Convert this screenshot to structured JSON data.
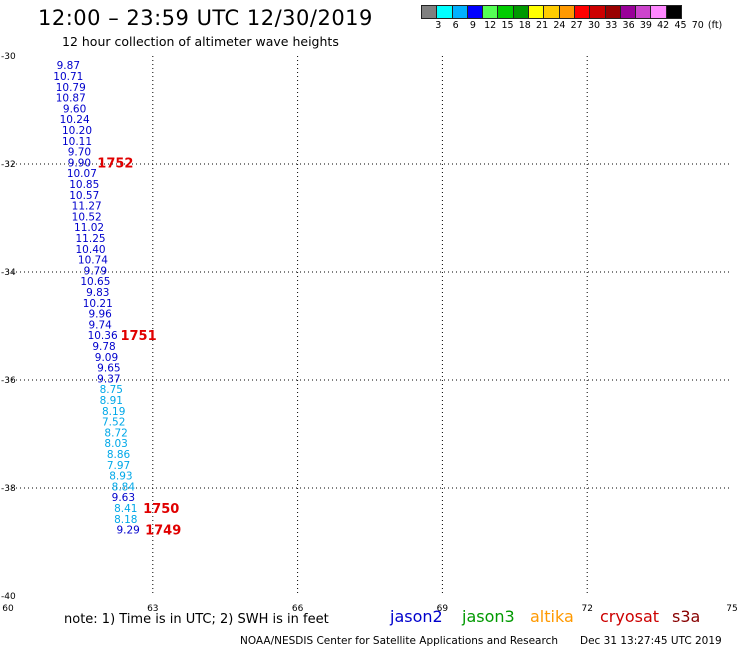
{
  "header": {
    "title": "12:00 – 23:59 UTC 12/30/2019",
    "subtitle": "12 hour collection of altimeter wave heights"
  },
  "legend": {
    "colors": [
      "#808080",
      "#00ffff",
      "#00b0ff",
      "#0000ff",
      "#55ff55",
      "#00cc00",
      "#009900",
      "#ffff00",
      "#ffcc00",
      "#ff9900",
      "#ff0000",
      "#cc0000",
      "#990000",
      "#990099",
      "#cc44cc",
      "#ff88ff",
      "#000000"
    ],
    "labels": [
      "3",
      "6",
      "9",
      "12",
      "15",
      "18",
      "21",
      "24",
      "27",
      "30",
      "33",
      "36",
      "39",
      "42",
      "45",
      "70",
      "(ft)"
    ]
  },
  "map": {
    "lat_labels": [
      "-30",
      "-32",
      "-34",
      "-36",
      "-38",
      "-40"
    ],
    "lon_labels": [
      "60",
      "63",
      "66",
      "69",
      "72",
      "75"
    ],
    "lat_range": [
      -40,
      -30
    ],
    "lon_range": [
      60,
      75
    ]
  },
  "swh_colors": {
    "jason2": "#0000cc",
    "jason3_light": "#00a8e8"
  },
  "observations": [
    {
      "lat": -30.17,
      "lon": 61.25,
      "value": "9.87",
      "color": "jason2"
    },
    {
      "lat": -30.37,
      "lon": 61.25,
      "value": "10.71",
      "color": "jason2"
    },
    {
      "lat": -30.57,
      "lon": 61.3,
      "value": "10.79",
      "color": "jason2"
    },
    {
      "lat": -30.77,
      "lon": 61.3,
      "value": "10.87",
      "color": "jason2"
    },
    {
      "lat": -30.97,
      "lon": 61.38,
      "value": "9.60",
      "color": "jason2"
    },
    {
      "lat": -31.17,
      "lon": 61.38,
      "value": "10.24",
      "color": "jason2"
    },
    {
      "lat": -31.37,
      "lon": 61.43,
      "value": "10.20",
      "color": "jason2"
    },
    {
      "lat": -31.57,
      "lon": 61.43,
      "value": "10.11",
      "color": "jason2"
    },
    {
      "lat": -31.77,
      "lon": 61.48,
      "value": "9.70",
      "color": "jason2"
    },
    {
      "lat": -31.97,
      "lon": 61.48,
      "value": "9.90",
      "color": "jason2"
    },
    {
      "lat": -32.17,
      "lon": 61.53,
      "value": "10.07",
      "color": "jason2"
    },
    {
      "lat": -32.37,
      "lon": 61.58,
      "value": "10.85",
      "color": "jason2"
    },
    {
      "lat": -32.57,
      "lon": 61.58,
      "value": "10.57",
      "color": "jason2"
    },
    {
      "lat": -32.77,
      "lon": 61.63,
      "value": "11.27",
      "color": "jason2"
    },
    {
      "lat": -32.97,
      "lon": 61.63,
      "value": "10.52",
      "color": "jason2"
    },
    {
      "lat": -33.17,
      "lon": 61.68,
      "value": "11.02",
      "color": "jason2"
    },
    {
      "lat": -33.37,
      "lon": 61.71,
      "value": "11.25",
      "color": "jason2"
    },
    {
      "lat": -33.57,
      "lon": 61.71,
      "value": "10.40",
      "color": "jason2"
    },
    {
      "lat": -33.77,
      "lon": 61.76,
      "value": "10.74",
      "color": "jason2"
    },
    {
      "lat": -33.97,
      "lon": 61.81,
      "value": "9.79",
      "color": "jason2"
    },
    {
      "lat": -34.17,
      "lon": 61.81,
      "value": "10.65",
      "color": "jason2"
    },
    {
      "lat": -34.37,
      "lon": 61.86,
      "value": "9.83",
      "color": "jason2"
    },
    {
      "lat": -34.57,
      "lon": 61.86,
      "value": "10.21",
      "color": "jason2"
    },
    {
      "lat": -34.77,
      "lon": 61.91,
      "value": "9.96",
      "color": "jason2"
    },
    {
      "lat": -34.97,
      "lon": 61.91,
      "value": "9.74",
      "color": "jason2"
    },
    {
      "lat": -35.17,
      "lon": 61.96,
      "value": "10.36",
      "color": "jason2"
    },
    {
      "lat": -35.37,
      "lon": 61.99,
      "value": "9.78",
      "color": "jason2"
    },
    {
      "lat": -35.57,
      "lon": 62.04,
      "value": "9.09",
      "color": "jason2"
    },
    {
      "lat": -35.77,
      "lon": 62.09,
      "value": "9.65",
      "color": "jason2"
    },
    {
      "lat": -35.97,
      "lon": 62.09,
      "value": "9.37",
      "color": "jason2"
    },
    {
      "lat": -36.17,
      "lon": 62.14,
      "value": "8.75",
      "color": "jason3_light"
    },
    {
      "lat": -36.37,
      "lon": 62.14,
      "value": "8.91",
      "color": "jason3_light"
    },
    {
      "lat": -36.57,
      "lon": 62.19,
      "value": "8.19",
      "color": "jason3_light"
    },
    {
      "lat": -36.77,
      "lon": 62.19,
      "value": "7.52",
      "color": "jason3_light"
    },
    {
      "lat": -36.97,
      "lon": 62.24,
      "value": "8.72",
      "color": "jason3_light"
    },
    {
      "lat": -37.17,
      "lon": 62.24,
      "value": "8.03",
      "color": "jason3_light"
    },
    {
      "lat": -37.37,
      "lon": 62.29,
      "value": "8.86",
      "color": "jason3_light"
    },
    {
      "lat": -37.57,
      "lon": 62.29,
      "value": "7.97",
      "color": "jason3_light"
    },
    {
      "lat": -37.77,
      "lon": 62.34,
      "value": "8.93",
      "color": "jason3_light"
    },
    {
      "lat": -37.97,
      "lon": 62.39,
      "value": "8.84",
      "color": "jason3_light"
    },
    {
      "lat": -38.17,
      "lon": 62.39,
      "value": "9.63",
      "color": "jason2"
    },
    {
      "lat": -38.37,
      "lon": 62.44,
      "value": "8.41",
      "color": "jason3_light"
    },
    {
      "lat": -38.57,
      "lon": 62.44,
      "value": "8.18",
      "color": "jason3_light"
    },
    {
      "lat": -38.77,
      "lon": 62.49,
      "value": "9.29",
      "color": "jason2"
    }
  ],
  "pass_labels": [
    {
      "lat": -31.97,
      "lon": 61.85,
      "text": "1752"
    },
    {
      "lat": -35.17,
      "lon": 62.33,
      "text": "1751"
    },
    {
      "lat": -38.37,
      "lon": 62.8,
      "text": "1750"
    },
    {
      "lat": -38.77,
      "lon": 62.84,
      "text": "1749"
    }
  ],
  "footer": {
    "note": "note:  1) Time is in UTC;  2) SWH is in feet",
    "satellites": [
      {
        "name": "jason2",
        "color": "#0000cc"
      },
      {
        "name": "jason3",
        "color": "#009900"
      },
      {
        "name": "altika",
        "color": "#ff9900"
      },
      {
        "name": "cryosat",
        "color": "#cc0000"
      },
      {
        "name": "s3a",
        "color": "#880000"
      }
    ],
    "credit": "NOAA/NESDIS Center for Satellite Applications and Research",
    "timestamp": "Dec 31 13:27:45 UTC 2019"
  }
}
